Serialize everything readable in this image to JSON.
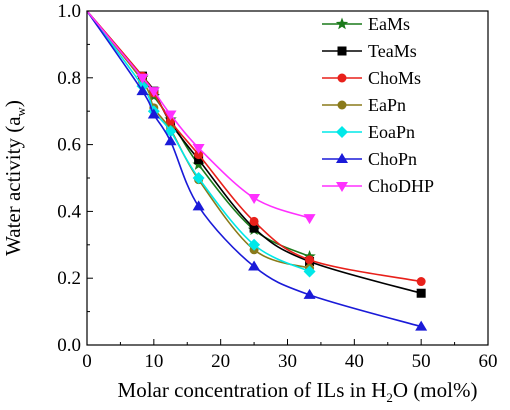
{
  "chart_data": {
    "type": "line",
    "title": "",
    "xlabel": {
      "main": "Molar concentration of ILs in H",
      "sub": "2",
      "tail": "O (mol%)"
    },
    "ylabel": {
      "main": "Water activity (a",
      "sub": "w",
      "tail": ")"
    },
    "xlim": [
      0,
      60
    ],
    "ylim": [
      0,
      1.0
    ],
    "xticks": [
      "0",
      "10",
      "20",
      "30",
      "40",
      "50",
      "60"
    ],
    "yticks": [
      "0.0",
      "0.2",
      "0.4",
      "0.6",
      "0.8",
      "1.0"
    ],
    "grid": false,
    "legend_position": "top-right",
    "series": [
      {
        "name": "EaMs",
        "color": "#1a7a1a",
        "marker": "star",
        "x": [
          0,
          8.3,
          10,
          12.5,
          16.7,
          25,
          33.3
        ],
        "y": [
          1.0,
          0.8,
          0.745,
          0.675,
          0.54,
          0.345,
          0.265
        ]
      },
      {
        "name": "TeaMs",
        "color": "#000000",
        "marker": "square",
        "x": [
          0,
          8.3,
          10,
          12.5,
          16.7,
          25,
          33.3,
          50
        ],
        "y": [
          1.0,
          0.805,
          0.76,
          0.665,
          0.555,
          0.35,
          0.25,
          0.155
        ]
      },
      {
        "name": "ChoMs",
        "color": "#e8201a",
        "marker": "circle",
        "x": [
          0,
          8.3,
          10,
          12.5,
          16.7,
          25,
          33.3,
          50
        ],
        "y": [
          1.0,
          0.805,
          0.755,
          0.67,
          0.57,
          0.37,
          0.255,
          0.19
        ]
      },
      {
        "name": "EaPn",
        "color": "#8a7a1a",
        "marker": "circle",
        "x": [
          0,
          8.3,
          10,
          12.5,
          16.7,
          25,
          33.3
        ],
        "y": [
          1.0,
          0.79,
          0.71,
          0.645,
          0.495,
          0.285,
          0.23
        ]
      },
      {
        "name": "EoaPn",
        "color": "#00e8e8",
        "marker": "diamond",
        "x": [
          0,
          8.3,
          10,
          12.5,
          16.7,
          25,
          33.3
        ],
        "y": [
          1.0,
          0.775,
          0.7,
          0.64,
          0.5,
          0.3,
          0.22
        ]
      },
      {
        "name": "ChoPn",
        "color": "#1a1ad8",
        "marker": "triangle-up",
        "x": [
          0,
          8.3,
          10,
          12.5,
          16.7,
          25,
          33.3,
          50
        ],
        "y": [
          1.0,
          0.76,
          0.69,
          0.61,
          0.415,
          0.235,
          0.15,
          0.055
        ]
      },
      {
        "name": "ChoDHP",
        "color": "#ff30ff",
        "marker": "triangle-down",
        "x": [
          0,
          8.3,
          10,
          12.5,
          16.7,
          25,
          33.3
        ],
        "y": [
          1.0,
          0.8,
          0.76,
          0.69,
          0.59,
          0.44,
          0.38
        ]
      }
    ]
  }
}
